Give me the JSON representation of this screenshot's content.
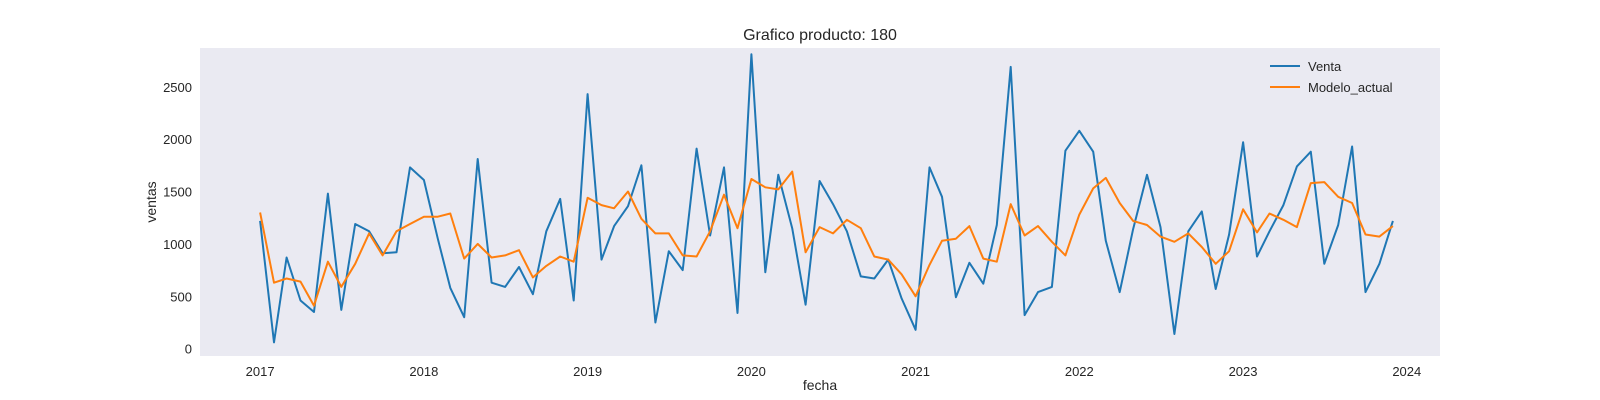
{
  "chart_data": {
    "type": "line",
    "title": "Grafico producto: 180",
    "xlabel": "fecha",
    "ylabel": "ventas",
    "xlim": [
      "2016-08-20",
      "2024-03-15"
    ],
    "ylim": [
      -60,
      2880
    ],
    "x_ticks": [
      "2017",
      "2018",
      "2019",
      "2020",
      "2021",
      "2022",
      "2023",
      "2024"
    ],
    "y_ticks": [
      0,
      500,
      1000,
      1500,
      2000,
      2500
    ],
    "grid": false,
    "background": "#eaeaf2",
    "legend": {
      "position": "top-right"
    },
    "x": [
      "2017-01",
      "2017-02",
      "2017-03",
      "2017-04",
      "2017-05",
      "2017-06",
      "2017-07",
      "2017-08",
      "2017-09",
      "2017-10",
      "2017-11",
      "2017-12",
      "2018-01",
      "2018-02",
      "2018-03",
      "2018-04",
      "2018-05",
      "2018-06",
      "2018-07",
      "2018-08",
      "2018-09",
      "2018-10",
      "2018-11",
      "2018-12",
      "2019-01",
      "2019-02",
      "2019-03",
      "2019-04",
      "2019-05",
      "2019-06",
      "2019-07",
      "2019-08",
      "2019-09",
      "2019-10",
      "2019-11",
      "2019-12",
      "2020-01",
      "2020-02",
      "2020-03",
      "2020-04",
      "2020-05",
      "2020-06",
      "2020-07",
      "2020-08",
      "2020-09",
      "2020-10",
      "2020-11",
      "2020-12",
      "2021-01",
      "2021-02",
      "2021-03",
      "2021-04",
      "2021-05",
      "2021-06",
      "2021-07",
      "2021-08",
      "2021-09",
      "2021-10",
      "2021-11",
      "2021-12",
      "2022-01",
      "2022-02",
      "2022-03",
      "2022-04",
      "2022-05",
      "2022-06",
      "2022-07",
      "2022-08",
      "2022-09",
      "2022-10",
      "2022-11",
      "2022-12",
      "2023-01",
      "2023-02",
      "2023-03",
      "2023-04",
      "2023-05",
      "2023-06",
      "2023-07",
      "2023-08",
      "2023-09",
      "2023-10",
      "2023-11",
      "2023-12"
    ],
    "series": [
      {
        "name": "Venta",
        "color": "#1f77b4",
        "values": [
          1230,
          70,
          880,
          470,
          360,
          1490,
          380,
          1200,
          1130,
          920,
          930,
          1740,
          1620,
          1060,
          590,
          310,
          1820,
          640,
          600,
          790,
          530,
          1130,
          1440,
          470,
          2440,
          860,
          1180,
          1370,
          1760,
          260,
          940,
          760,
          1920,
          1090,
          1740,
          350,
          2820,
          740,
          1670,
          1160,
          430,
          1610,
          1390,
          1130,
          700,
          680,
          860,
          490,
          190,
          1740,
          1460,
          500,
          830,
          630,
          1190,
          2700,
          330,
          550,
          600,
          1900,
          2090,
          1890,
          1040,
          550,
          1150,
          1670,
          1170,
          150,
          1130,
          1320,
          580,
          1100,
          1980,
          890,
          1130,
          1380,
          1750,
          1890,
          820,
          1190,
          1940,
          550,
          820,
          1230
        ]
      },
      {
        "name": "Modelo_actual",
        "color": "#ff7f0e",
        "values": [
          1310,
          640,
          680,
          650,
          420,
          840,
          600,
          820,
          1110,
          900,
          1130,
          1200,
          1270,
          1270,
          1300,
          870,
          1010,
          880,
          900,
          950,
          690,
          800,
          890,
          840,
          1450,
          1380,
          1350,
          1510,
          1250,
          1110,
          1110,
          900,
          890,
          1130,
          1480,
          1160,
          1630,
          1550,
          1530,
          1700,
          930,
          1170,
          1110,
          1240,
          1160,
          890,
          860,
          720,
          510,
          810,
          1040,
          1060,
          1180,
          870,
          840,
          1390,
          1090,
          1180,
          1030,
          900,
          1290,
          1540,
          1640,
          1400,
          1230,
          1190,
          1080,
          1030,
          1110,
          980,
          820,
          940,
          1340,
          1120,
          1300,
          1240,
          1170,
          1590,
          1600,
          1460,
          1400,
          1100,
          1080,
          1180
        ]
      }
    ]
  }
}
